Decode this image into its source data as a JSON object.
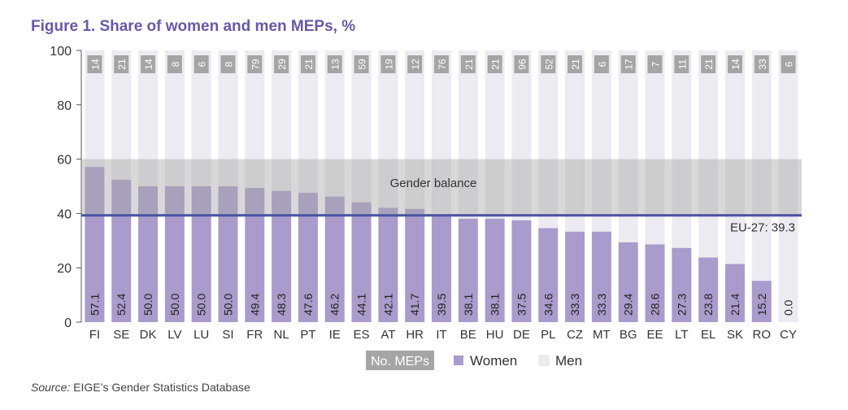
{
  "page": {
    "title": "Figure 1. Share of women and men MEPs, %",
    "source_label": "Source:",
    "source_text": " EIGE’s Gender Statistics Database"
  },
  "colors": {
    "women": "#a99bcb",
    "men": "#ecebf1",
    "balance_band": "#a8a8a8",
    "eu_line": "#4a53a1",
    "mep_box": "#a5a5a5",
    "title": "#6a58a8"
  },
  "chart_data": {
    "type": "bar",
    "stacked": true,
    "title": "Figure 1. Share of women and men MEPs, %",
    "ylim": [
      0,
      100
    ],
    "yticks": [
      0,
      20,
      40,
      60,
      80,
      100
    ],
    "categories": [
      "FI",
      "SE",
      "DK",
      "LV",
      "LU",
      "SI",
      "FR",
      "NL",
      "PT",
      "IE",
      "ES",
      "AT",
      "HR",
      "IT",
      "BE",
      "HU",
      "DE",
      "PL",
      "CZ",
      "MT",
      "BG",
      "EE",
      "LT",
      "EL",
      "SK",
      "RO",
      "CY"
    ],
    "series": [
      {
        "name": "Women",
        "values": [
          57.1,
          52.4,
          50.0,
          50.0,
          50.0,
          50.0,
          49.4,
          48.3,
          47.6,
          46.2,
          44.1,
          42.1,
          41.7,
          39.5,
          38.1,
          38.1,
          37.5,
          34.6,
          33.3,
          33.3,
          29.4,
          28.6,
          27.3,
          23.8,
          21.4,
          15.2,
          0.0
        ]
      },
      {
        "name": "Men",
        "values": [
          42.9,
          47.6,
          50.0,
          50.0,
          50.0,
          50.0,
          50.6,
          51.7,
          52.4,
          53.8,
          55.9,
          57.9,
          58.3,
          60.5,
          61.9,
          61.9,
          62.5,
          65.4,
          66.7,
          66.7,
          70.6,
          71.4,
          72.7,
          76.2,
          78.6,
          84.8,
          100.0
        ]
      }
    ],
    "women_labels": [
      "57.1",
      "52.4",
      "50.0",
      "50.0",
      "50.0",
      "50.0",
      "49.4",
      "48.3",
      "47.6",
      "46.2",
      "44.1",
      "42.1",
      "41.7",
      "39.5",
      "38.1",
      "38.1",
      "37.5",
      "34.6",
      "33.3",
      "33.3",
      "29.4",
      "28.6",
      "27.3",
      "23.8",
      "21.4",
      "15.2",
      "0.0"
    ],
    "no_meps": [
      "14",
      "21",
      "14",
      "8",
      "6",
      "8",
      "79",
      "29",
      "21",
      "13",
      "59",
      "19",
      "12",
      "76",
      "21",
      "21",
      "96",
      "52",
      "21",
      "6",
      "17",
      "7",
      "11",
      "21",
      "14",
      "33",
      "6"
    ],
    "gender_balance": {
      "range": [
        39.3,
        60
      ],
      "label": "Gender balance"
    },
    "eu_average": {
      "value": 39.3,
      "label": "EU-27: 39.3"
    },
    "legend": {
      "no_meps": "No. MEPs",
      "women": "Women",
      "men": "Men"
    }
  }
}
